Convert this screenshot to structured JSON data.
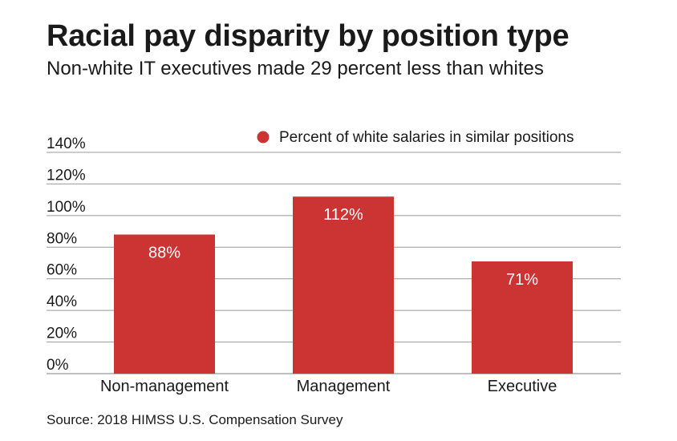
{
  "header": {
    "title": "Racial pay disparity by position type",
    "subtitle": "Non-white IT executives made 29 percent less than whites"
  },
  "footer": {
    "source": "Source: 2018 HIMSS U.S. Compensation Survey"
  },
  "colors": {
    "bar": "#cc3333",
    "grid": "#999999"
  },
  "chart_data": {
    "type": "bar",
    "title": "Racial pay disparity by position type",
    "subtitle": "Non-white IT executives made 29 percent less than whites",
    "categories": [
      "Non-management",
      "Management",
      "Executive"
    ],
    "series": [
      {
        "name": "Percent of white salaries in similar positions",
        "values": [
          88,
          112,
          71
        ],
        "labels": [
          "88%",
          "112%",
          "71%"
        ]
      }
    ],
    "yticks": [
      0,
      20,
      40,
      60,
      80,
      100,
      120,
      140
    ],
    "ytick_labels": [
      "0%",
      "20%",
      "40%",
      "60%",
      "80%",
      "100%",
      "120%",
      "140%"
    ],
    "ylim": [
      0,
      140
    ],
    "xlabel": "",
    "ylabel": "",
    "grid": true,
    "legend_position": "top-right"
  }
}
